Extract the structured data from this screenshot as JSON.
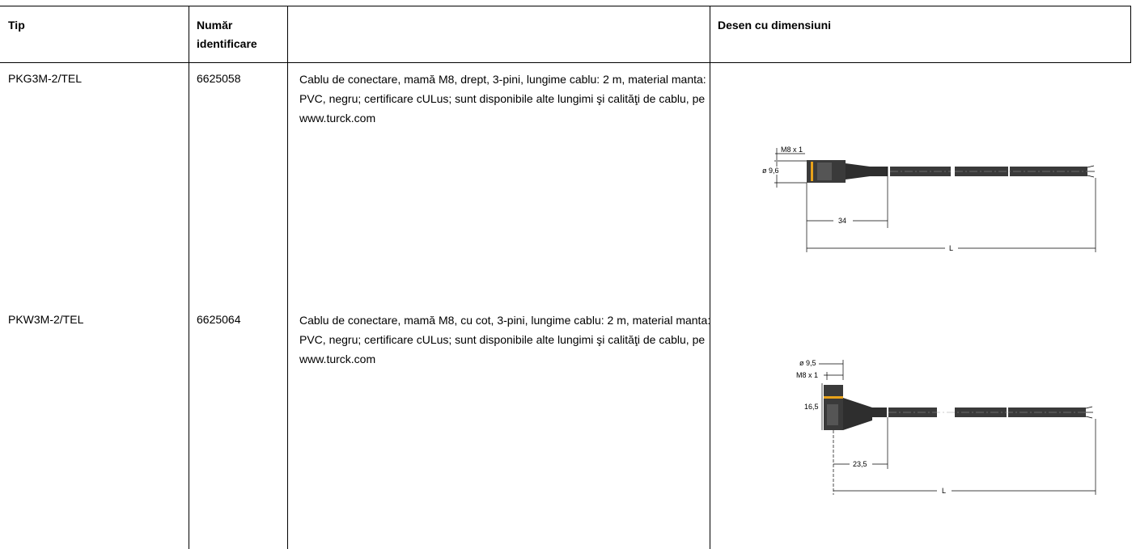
{
  "table": {
    "headers": {
      "tip": "Tip",
      "numar_line1": "Număr",
      "numar_line2": "identificare",
      "blank": "",
      "desen": "Desen cu dimensiuni"
    },
    "rows": [
      {
        "tip": "PKG3M-2/TEL",
        "numar": "6625058",
        "description": "Cablu de conectare, mamă M8, drept, 3-pini, lungime cablu: 2 m, material manta: PVC, negru; certificare cULus; sunt disponibile alte lungimi şi calităţi de cablu, pe www.turck.com",
        "drawing": {
          "type": "straight",
          "labels": {
            "thread": "M8 x 1",
            "diameter": "ø 9,6",
            "length_connector": "34",
            "length_total": "L"
          }
        }
      },
      {
        "tip": "PKW3M-2/TEL",
        "numar": "6625064",
        "description": "Cablu de conectare, mamă M8, cu cot, 3-pini, lungime cablu: 2 m, material manta: PVC, negru; certificare cULus; sunt disponibile alte lungimi şi calităţi de cablu, pe www.turck.com",
        "drawing": {
          "type": "angled",
          "labels": {
            "diameter": "ø 9,5",
            "thread": "M8 x 1",
            "height": "16,5",
            "length_connector": "23,5",
            "length_total": "L"
          }
        }
      }
    ]
  },
  "colors": {
    "border": "#000000",
    "cable": "#3a3a3a",
    "accent_ring": "#e8a21a"
  }
}
